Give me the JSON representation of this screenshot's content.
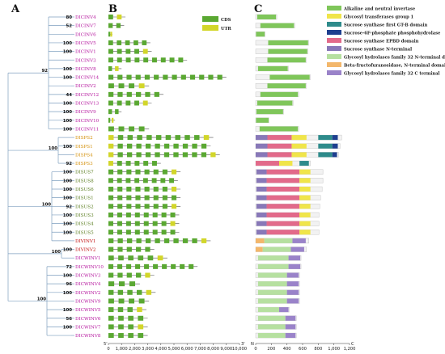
{
  "panel_labels": [
    "A",
    "B",
    "C"
  ],
  "colors": {
    "cds": "#5aa832",
    "utr": "#d2d62a",
    "intron": "#555555",
    "label_inv": "#b5179e",
    "label_sps": "#d4900a",
    "label_sus": "#5a7d1f",
    "label_vinv": "#c21010",
    "tree": "#7f9fbf"
  },
  "gene_legend": [
    {
      "name": "CDS",
      "color": "#5aa832"
    },
    {
      "name": "UTR",
      "color": "#d2d62a"
    }
  ],
  "domain_legend": [
    {
      "name": "Alkaline and neutral invertase",
      "color": "#7fc65a"
    },
    {
      "name": "Glycosyl transferases group 1",
      "color": "#f0e54a"
    },
    {
      "name": "Sucrose synthase first GT-B domain",
      "color": "#2e8b8b"
    },
    {
      "name": "Sucrose-6F-phosphate phosphohydrolase",
      "color": "#1e3f8f"
    },
    {
      "name": "Sucrose synthase EPBD domain",
      "color": "#e26a8a"
    },
    {
      "name": "Sucrose synthase N-terminal",
      "color": "#8878b8"
    },
    {
      "name": "Glycosyl hydrolases family 32 N-terminal domain",
      "color": "#b6e0a0"
    },
    {
      "name": "Beta-fructofuranosidase, N-terminal domain",
      "color": "#f3b76b"
    },
    {
      "name": "Glycosyl hydrolases family 32 C terminal",
      "color": "#9a83c9"
    }
  ],
  "gene_axis": {
    "min": 0,
    "max": 10000,
    "ticks": [
      "0",
      "1,000",
      "2,000",
      "3,000",
      "4,000",
      "5,000",
      "6,000",
      "7,000",
      "8,000",
      "9,000",
      "10,000"
    ],
    "end_labels": [
      "5'",
      "3'"
    ]
  },
  "protein_axis": {
    "min": 0,
    "max": 1200,
    "ticks": [
      "0",
      "200",
      "400",
      "600",
      "800",
      "1,000",
      "1,200"
    ],
    "end_labels": [
      "N",
      "C"
    ]
  },
  "genes": [
    {
      "name": "DICINV4",
      "group": "inv",
      "boot": "80",
      "length": 1300,
      "protein": 270,
      "domains": [
        [
          "Alkaline and neutral invertase",
          20,
          260
        ]
      ]
    },
    {
      "name": "DICINV7",
      "group": "inv",
      "boot": "52",
      "length": 1200,
      "protein": 500,
      "domains": [
        [
          "Alkaline and neutral invertase",
          60,
          490
        ]
      ]
    },
    {
      "name": "DICINV6",
      "group": "inv",
      "boot": "",
      "length": 300,
      "protein": 120,
      "domains": [
        [
          "Alkaline and neutral invertase",
          5,
          115
        ]
      ]
    },
    {
      "name": "DICINV5",
      "group": "inv",
      "boot": "100",
      "length": 3200,
      "protein": 680,
      "domains": [
        [
          "Alkaline and neutral invertase",
          160,
          670
        ]
      ]
    },
    {
      "name": "DICINV1",
      "group": "inv",
      "boot": "100",
      "length": 3300,
      "protein": 670,
      "domains": [
        [
          "Alkaline and neutral invertase",
          160,
          660
        ]
      ]
    },
    {
      "name": "DICINV3",
      "group": "inv",
      "boot": "",
      "length": 6000,
      "protein": 650,
      "domains": [
        [
          "Alkaline and neutral invertase",
          150,
          640
        ]
      ]
    },
    {
      "name": "DICINV8",
      "group": "inv",
      "boot": "100",
      "length": 1000,
      "protein": 420,
      "domains": [
        [
          "Alkaline and neutral invertase",
          30,
          410
        ]
      ]
    },
    {
      "name": "DICINV14",
      "group": "inv",
      "boot": "100",
      "length": 9000,
      "protein": 700,
      "domains": [
        [
          "Alkaline and neutral invertase",
          180,
          690
        ]
      ]
    },
    {
      "name": "DICINV2",
      "group": "inv",
      "boot": "",
      "length": 3100,
      "protein": 650,
      "domains": [
        [
          "Alkaline and neutral invertase",
          150,
          640
        ]
      ]
    },
    {
      "name": "DICINV12",
      "group": "inv",
      "boot": "44",
      "length": 4200,
      "protein": 550,
      "domains": [
        [
          "Alkaline and neutral invertase",
          60,
          540
        ]
      ]
    },
    {
      "name": "DICINV13",
      "group": "inv",
      "boot": "100",
      "length": 3300,
      "protein": 480,
      "domains": [
        [
          "Alkaline and neutral invertase",
          20,
          470
        ]
      ]
    },
    {
      "name": "DICINV9",
      "group": "inv",
      "boot": "100",
      "length": 1000,
      "protein": 360,
      "domains": [
        [
          "Alkaline and neutral invertase",
          10,
          350
        ]
      ]
    },
    {
      "name": "DICINV10",
      "group": "inv",
      "boot": "100",
      "length": 500,
      "protein": 170,
      "domains": [
        [
          "Alkaline and neutral invertase",
          5,
          165
        ]
      ]
    },
    {
      "name": "DICINV11",
      "group": "inv",
      "boot": "100",
      "length": 3100,
      "protein": 550,
      "domains": [
        [
          "Alkaline and neutral invertase",
          50,
          540
        ]
      ]
    },
    {
      "name": "DISPS2",
      "group": "sps",
      "boot": "",
      "length": 8000,
      "protein": 1100,
      "domains": [
        [
          "Sucrose synthase N-terminal",
          0,
          150
        ],
        [
          "Sucrose synthase EPBD domain",
          150,
          460
        ],
        [
          "Glycosyl transferases group 1",
          460,
          650
        ],
        [
          "Sucrose synthase first GT-B domain",
          800,
          980
        ],
        [
          "Sucrose-6F-phosphate phosphohydrolase",
          980,
          1050
        ]
      ]
    },
    {
      "name": "DISPS1",
      "group": "sps",
      "boot": "100",
      "length": 7800,
      "protein": 1080,
      "domains": [
        [
          "Sucrose synthase N-terminal",
          0,
          150
        ],
        [
          "Sucrose synthase EPBD domain",
          150,
          460
        ],
        [
          "Glycosyl transferases group 1",
          460,
          650
        ],
        [
          "Sucrose synthase first GT-B domain",
          800,
          980
        ],
        [
          "Sucrose-6F-phosphate phosphohydrolase",
          980,
          1050
        ]
      ]
    },
    {
      "name": "DISPS4",
      "group": "sps",
      "boot": "",
      "length": 8500,
      "protein": 1060,
      "domains": [
        [
          "Sucrose synthase N-terminal",
          0,
          150
        ],
        [
          "Sucrose synthase EPBD domain",
          150,
          460
        ],
        [
          "Glycosyl transferases group 1",
          460,
          650
        ],
        [
          "Sucrose synthase first GT-B domain",
          800,
          980
        ],
        [
          "Sucrose-6F-phosphate phosphohydrolase",
          980,
          1040
        ]
      ]
    },
    {
      "name": "DISPS3",
      "group": "sps",
      "boot": "92",
      "length": 4000,
      "protein": 700,
      "domains": [
        [
          "Sucrose synthase EPBD domain",
          0,
          300
        ],
        [
          "Glycosyl transferases group 1",
          300,
          470
        ],
        [
          "Sucrose synthase first GT-B domain",
          560,
          680
        ]
      ]
    },
    {
      "name": "DISUS7",
      "group": "sus",
      "boot": "100",
      "length": 5500,
      "protein": 860,
      "domains": [
        [
          "Sucrose synthase N-terminal",
          10,
          140
        ],
        [
          "Sucrose synthase EPBD domain",
          140,
          560
        ],
        [
          "Glycosyl transferases group 1",
          560,
          700
        ]
      ]
    },
    {
      "name": "DISUS8",
      "group": "sus",
      "boot": "100",
      "length": 5300,
      "protein": 860,
      "domains": [
        [
          "Sucrose synthase N-terminal",
          10,
          140
        ],
        [
          "Sucrose synthase EPBD domain",
          140,
          560
        ],
        [
          "Glycosyl transferases group 1",
          560,
          700
        ]
      ]
    },
    {
      "name": "DISUS6",
      "group": "sus",
      "boot": "100",
      "length": 5500,
      "protein": 850,
      "domains": [
        [
          "Sucrose synthase N-terminal",
          10,
          140
        ],
        [
          "Sucrose synthase EPBD domain",
          140,
          560
        ],
        [
          "Glycosyl transferases group 1",
          560,
          700
        ]
      ]
    },
    {
      "name": "DISUS1",
      "group": "sus",
      "boot": "100",
      "length": 5500,
      "protein": 830,
      "domains": [
        [
          "Sucrose synthase N-terminal",
          10,
          140
        ],
        [
          "Sucrose synthase EPBD domain",
          140,
          560
        ],
        [
          "Glycosyl transferases group 1",
          560,
          700
        ]
      ]
    },
    {
      "name": "DISUS2",
      "group": "sus",
      "boot": "92",
      "length": 5500,
      "protein": 820,
      "domains": [
        [
          "Sucrose synthase N-terminal",
          10,
          140
        ],
        [
          "Sucrose synthase EPBD domain",
          140,
          560
        ],
        [
          "Glycosyl transferases group 1",
          560,
          700
        ]
      ]
    },
    {
      "name": "DISUS3",
      "group": "sus",
      "boot": "100",
      "length": 5400,
      "protein": 810,
      "domains": [
        [
          "Sucrose synthase N-terminal",
          10,
          140
        ],
        [
          "Sucrose synthase EPBD domain",
          140,
          560
        ],
        [
          "Glycosyl transferases group 1",
          560,
          700
        ]
      ]
    },
    {
      "name": "DISUS4",
      "group": "sus",
      "boot": "100",
      "length": 5400,
      "protein": 810,
      "domains": [
        [
          "Sucrose synthase N-terminal",
          10,
          140
        ],
        [
          "Sucrose synthase EPBD domain",
          140,
          560
        ],
        [
          "Glycosyl transferases group 1",
          560,
          700
        ]
      ]
    },
    {
      "name": "DISUS5",
      "group": "sus",
      "boot": "100",
      "length": 5400,
      "protein": 810,
      "domains": [
        [
          "Sucrose synthase N-terminal",
          10,
          140
        ],
        [
          "Sucrose synthase EPBD domain",
          140,
          560
        ],
        [
          "Glycosyl transferases group 1",
          560,
          700
        ]
      ]
    },
    {
      "name": "DIVINV1",
      "group": "vinv",
      "boot": "",
      "length": 7800,
      "protein": 680,
      "domains": [
        [
          "Beta-fructofuranosidase, N-terminal domain",
          0,
          110
        ],
        [
          "Glycosyl hydrolases family 32 N-terminal domain",
          110,
          470
        ],
        [
          "Glycosyl hydrolases family 32 C terminal",
          470,
          640
        ]
      ]
    },
    {
      "name": "DIVINV2",
      "group": "vinv",
      "boot": "100",
      "length": 3500,
      "protein": 650,
      "domains": [
        [
          "Beta-fructofuranosidase, N-terminal domain",
          0,
          90
        ],
        [
          "Glycosyl hydrolases family 32 N-terminal domain",
          90,
          450
        ],
        [
          "Glycosyl hydrolases family 32 C terminal",
          450,
          620
        ]
      ]
    },
    {
      "name": "DICWINV1",
      "group": "inv",
      "boot": "",
      "length": 4500,
      "protein": 580,
      "domains": [
        [
          "Glycosyl hydrolases family 32 N-terminal domain",
          30,
          420
        ],
        [
          "Glycosyl hydrolases family 32 C terminal",
          420,
          570
        ]
      ]
    },
    {
      "name": "DICWINV10",
      "group": "inv",
      "boot": "72",
      "length": 6800,
      "protein": 580,
      "domains": [
        [
          "Glycosyl hydrolases family 32 N-terminal domain",
          30,
          420
        ],
        [
          "Glycosyl hydrolases family 32 C terminal",
          420,
          570
        ]
      ]
    },
    {
      "name": "DICWINV3",
      "group": "inv",
      "boot": "100",
      "length": 3500,
      "protein": 560,
      "domains": [
        [
          "Glycosyl hydrolases family 32 N-terminal domain",
          30,
          400
        ],
        [
          "Glycosyl hydrolases family 32 C terminal",
          400,
          550
        ]
      ]
    },
    {
      "name": "DICWINV4",
      "group": "inv",
      "boot": "96",
      "length": 2400,
      "protein": 560,
      "domains": [
        [
          "Glycosyl hydrolases family 32 N-terminal domain",
          30,
          400
        ],
        [
          "Glycosyl hydrolases family 32 C terminal",
          400,
          550
        ]
      ]
    },
    {
      "name": "DICWINV2",
      "group": "inv",
      "boot": "100",
      "length": 3600,
      "protein": 560,
      "domains": [
        [
          "Glycosyl hydrolases family 32 N-terminal domain",
          30,
          400
        ],
        [
          "Glycosyl hydrolases family 32 C terminal",
          400,
          550
        ]
      ]
    },
    {
      "name": "DICWINV9",
      "group": "inv",
      "boot": "",
      "length": 3100,
      "protein": 560,
      "domains": [
        [
          "Glycosyl hydrolases family 32 N-terminal domain",
          30,
          400
        ],
        [
          "Glycosyl hydrolases family 32 C terminal",
          400,
          550
        ]
      ]
    },
    {
      "name": "DICWINV5",
      "group": "inv",
      "boot": "100",
      "length": 2900,
      "protein": 430,
      "domains": [
        [
          "Glycosyl hydrolases family 32 N-terminal domain",
          30,
          300
        ],
        [
          "Glycosyl hydrolases family 32 C terminal",
          300,
          420
        ]
      ]
    },
    {
      "name": "DICWINV6",
      "group": "inv",
      "boot": "56",
      "length": 3000,
      "protein": 520,
      "domains": [
        [
          "Glycosyl hydrolases family 32 N-terminal domain",
          30,
          380
        ],
        [
          "Glycosyl hydrolases family 32 C terminal",
          380,
          510
        ]
      ]
    },
    {
      "name": "DICWINV7",
      "group": "inv",
      "boot": "100",
      "length": 3000,
      "protein": 520,
      "domains": [
        [
          "Glycosyl hydrolases family 32 N-terminal domain",
          30,
          380
        ],
        [
          "Glycosyl hydrolases family 32 C terminal",
          380,
          510
        ]
      ]
    },
    {
      "name": "DICWINV8",
      "group": "inv",
      "boot": "",
      "length": 3000,
      "protein": 520,
      "domains": [
        [
          "Glycosyl hydrolases family 32 N-terminal domain",
          30,
          380
        ],
        [
          "Glycosyl hydrolases family 32 C terminal",
          380,
          510
        ]
      ]
    }
  ],
  "tree_boot_extra": [
    "92",
    "100",
    "100",
    "100",
    "100"
  ]
}
